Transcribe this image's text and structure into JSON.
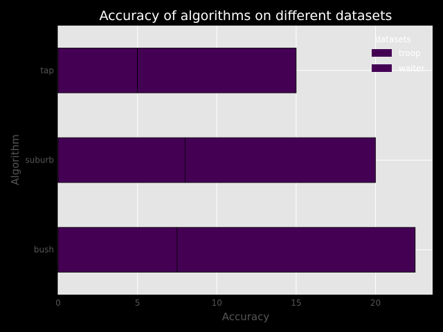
{
  "chart_data": {
    "type": "bar",
    "orientation": "horizontal",
    "stacked": true,
    "title": "Accuracy of algorithms on different datasets",
    "xlabel": "Accuracy",
    "ylabel": "Algorithm",
    "categories": [
      "bush",
      "suburb",
      "tap"
    ],
    "series": [
      {
        "name": "troop",
        "values": [
          7.5,
          8,
          5
        ],
        "color": "#440154"
      },
      {
        "name": "waiter",
        "values": [
          15,
          12,
          10
        ],
        "color": "#440154"
      }
    ],
    "xlim": [
      0,
      23.6
    ],
    "xticks": [
      0,
      5,
      10,
      15,
      20
    ],
    "grid": true,
    "legend": {
      "title": "datasets",
      "placement": "top-right"
    },
    "colors": {
      "background": "#000000",
      "plot_area": "#e5e5e5",
      "grid": "#ffffff"
    }
  }
}
